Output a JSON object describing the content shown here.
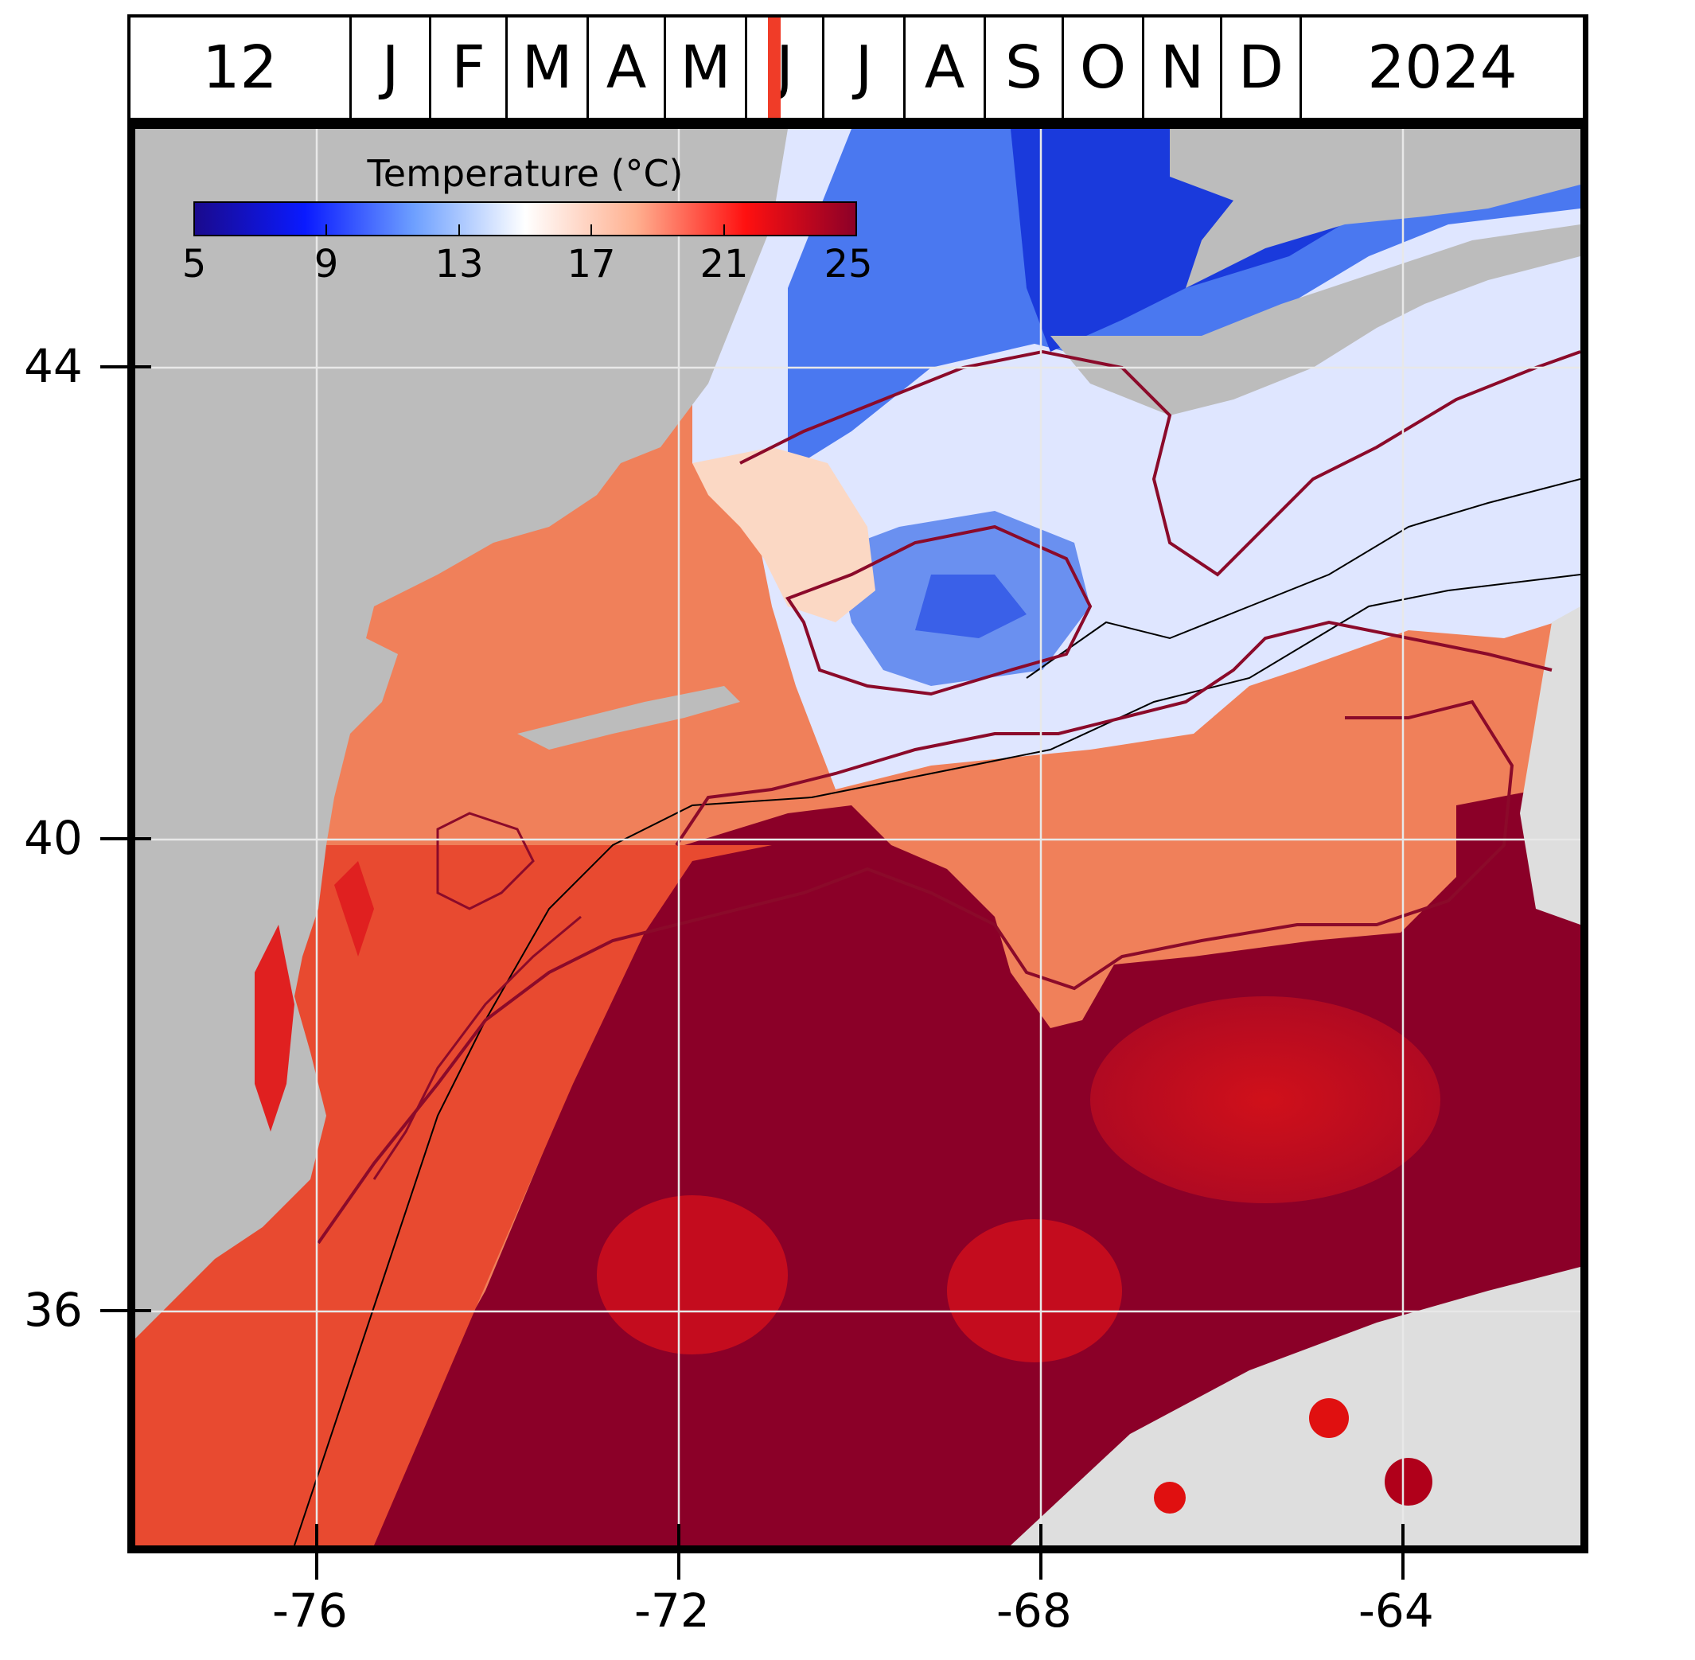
{
  "timeline": {
    "day": "12",
    "months": [
      "J",
      "F",
      "M",
      "A",
      "M",
      "J",
      "J",
      "A",
      "S",
      "O",
      "N",
      "D"
    ],
    "year": "2024",
    "current_month_fraction": 0.445,
    "marker_color": "#f03c28"
  },
  "colorbar": {
    "title": "Temperature (°C)",
    "ticks": [
      "5",
      "9",
      "13",
      "17",
      "21",
      "25"
    ],
    "min": 5,
    "max": 25,
    "colors": [
      "#1a0a8c",
      "#0a1aff",
      "#6ea0ff",
      "#ffffff",
      "#ffb090",
      "#ff1010",
      "#8b0028"
    ]
  },
  "axes": {
    "lat_ticks": [
      "44",
      "40",
      "36"
    ],
    "lon_ticks": [
      "-76",
      "-72",
      "-68",
      "-64"
    ]
  },
  "map": {
    "land_color": "#bcbcbc",
    "no_data_color": "#dedede",
    "grid_color": "#e8e8e8",
    "contour_color": "#8b0a2a"
  }
}
